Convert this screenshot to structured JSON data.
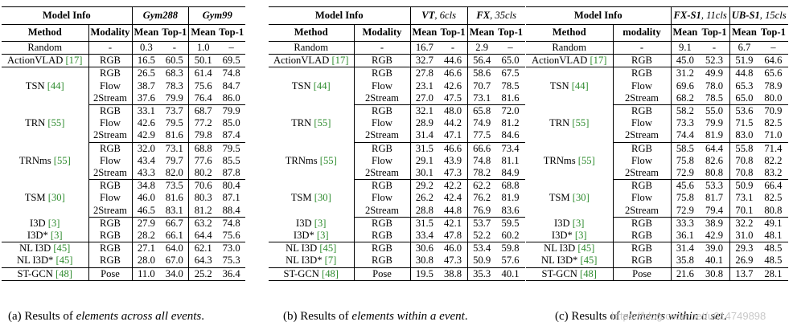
{
  "tables": [
    {
      "header": {
        "info": "Model Info",
        "c1": "Gym288",
        "c1b": "",
        "c2": "Gym99",
        "c2b": ""
      },
      "subheader": {
        "method": "Method",
        "modality": "Modality",
        "m1": "Mean",
        "t1": "Top-1",
        "m2": "Mean",
        "t2": "Top-1"
      },
      "rows": [
        {
          "m": "Random",
          "r": "",
          "mod": "-",
          "v": [
            "0.3",
            "-",
            "1.0",
            "–"
          ]
        },
        {
          "m": "ActionVLAD",
          "r": "[17]",
          "mod": "RGB",
          "v": [
            "16.5",
            "60.5",
            "50.1",
            "69.5"
          ]
        },
        {
          "m": "TSN",
          "r": "[44]",
          "mod": "RGB",
          "v": [
            "26.5",
            "68.3",
            "61.4",
            "74.8"
          ]
        },
        {
          "m": "",
          "r": "",
          "mod": "Flow",
          "v": [
            "38.7",
            "78.3",
            "75.6",
            "84.7"
          ]
        },
        {
          "m": "",
          "r": "",
          "mod": "2Stream",
          "v": [
            "37.6",
            "79.9",
            "76.4",
            "86.0"
          ]
        },
        {
          "m": "TRN",
          "r": "[55]",
          "mod": "RGB",
          "v": [
            "33.1",
            "73.7",
            "68.7",
            "79.9"
          ]
        },
        {
          "m": "",
          "r": "",
          "mod": "Flow",
          "v": [
            "42.6",
            "79.5",
            "77.2",
            "85.0"
          ]
        },
        {
          "m": "",
          "r": "",
          "mod": "2Stream",
          "v": [
            "42.9",
            "81.6",
            "79.8",
            "87.4"
          ]
        },
        {
          "m": "TRNms",
          "r": "[55]",
          "mod": "RGB",
          "v": [
            "32.0",
            "73.1",
            "68.8",
            "79.5"
          ]
        },
        {
          "m": "",
          "r": "",
          "mod": "Flow",
          "v": [
            "43.4",
            "79.7",
            "77.6",
            "85.5"
          ]
        },
        {
          "m": "",
          "r": "",
          "mod": "2Stream",
          "v": [
            "43.3",
            "82.0",
            "80.2",
            "87.8"
          ]
        },
        {
          "m": "TSM",
          "r": "[30]",
          "mod": "RGB",
          "v": [
            "34.8",
            "73.5",
            "70.6",
            "80.4"
          ]
        },
        {
          "m": "",
          "r": "",
          "mod": "Flow",
          "v": [
            "46.0",
            "81.6",
            "80.3",
            "87.1"
          ]
        },
        {
          "m": "",
          "r": "",
          "mod": "2Stream",
          "v": [
            "46.5",
            "83.1",
            "81.2",
            "88.4"
          ]
        },
        {
          "m": "I3D",
          "r": "[3]",
          "mod": "RGB",
          "v": [
            "27.9",
            "66.7",
            "63.2",
            "74.8"
          ]
        },
        {
          "m": "I3D*",
          "r": "[3]",
          "mod": "RGB",
          "v": [
            "28.2",
            "66.1",
            "64.4",
            "75.6"
          ]
        },
        {
          "m": "NL I3D",
          "r": "[45]",
          "mod": "RGB",
          "v": [
            "27.1",
            "64.0",
            "62.1",
            "73.0"
          ]
        },
        {
          "m": "NL I3D*",
          "r": "[45]",
          "mod": "RGB",
          "v": [
            "28.0",
            "67.0",
            "64.3",
            "75.3"
          ]
        },
        {
          "m": "ST-GCN",
          "r": "[48]",
          "mod": "Pose",
          "v": [
            "11.0",
            "34.0",
            "25.2",
            "36.4"
          ]
        }
      ],
      "caption_a": "(a) Results of ",
      "caption_b": "elements across all events",
      "caption_c": "."
    },
    {
      "header": {
        "info": "Model Info",
        "c1": "VT",
        "c1b": ", 6cls",
        "c2": "FX",
        "c2b": ", 35cls"
      },
      "subheader": {
        "method": "Method",
        "modality": "Modality",
        "m1": "Mean",
        "t1": "Top-1",
        "m2": "Mean",
        "t2": "Top-1"
      },
      "rows": [
        {
          "m": "Random",
          "r": "",
          "mod": "-",
          "v": [
            "16.7",
            "-",
            "2.9",
            "–"
          ]
        },
        {
          "m": "ActionVLAD",
          "r": "[17]",
          "mod": "RGB",
          "v": [
            "32.7",
            "44.6",
            "56.4",
            "65.0"
          ]
        },
        {
          "m": "TSN",
          "r": "[44]",
          "mod": "RGB",
          "v": [
            "27.8",
            "46.6",
            "58.6",
            "67.5"
          ]
        },
        {
          "m": "",
          "r": "",
          "mod": "Flow",
          "v": [
            "23.1",
            "42.6",
            "70.7",
            "78.5"
          ]
        },
        {
          "m": "",
          "r": "",
          "mod": "2Stream",
          "v": [
            "27.0",
            "47.5",
            "73.1",
            "81.6"
          ]
        },
        {
          "m": "TRN",
          "r": "[55]",
          "mod": "RGB",
          "v": [
            "32.1",
            "48.0",
            "65.8",
            "72.0"
          ]
        },
        {
          "m": "",
          "r": "",
          "mod": "Flow",
          "v": [
            "28.9",
            "44.2",
            "74.9",
            "81.2"
          ]
        },
        {
          "m": "",
          "r": "",
          "mod": "2Stream",
          "v": [
            "31.4",
            "47.1",
            "77.5",
            "84.6"
          ]
        },
        {
          "m": "TRNms",
          "r": "[55]",
          "mod": "RGB",
          "v": [
            "31.5",
            "46.6",
            "66.6",
            "73.4"
          ]
        },
        {
          "m": "",
          "r": "",
          "mod": "Flow",
          "v": [
            "29.1",
            "43.9",
            "74.8",
            "81.1"
          ]
        },
        {
          "m": "",
          "r": "",
          "mod": "2Stream",
          "v": [
            "30.1",
            "47.3",
            "78.2",
            "84.9"
          ]
        },
        {
          "m": "TSM",
          "r": "[30]",
          "mod": "RGB",
          "v": [
            "29.2",
            "42.2",
            "62.2",
            "68.8"
          ]
        },
        {
          "m": "",
          "r": "",
          "mod": "Flow",
          "v": [
            "26.2",
            "42.4",
            "76.2",
            "81.9"
          ]
        },
        {
          "m": "",
          "r": "",
          "mod": "2Stream",
          "v": [
            "28.8",
            "44.8",
            "76.9",
            "83.6"
          ]
        },
        {
          "m": "I3D",
          "r": "[3]",
          "mod": "RGB",
          "v": [
            "31.5",
            "42.1",
            "53.7",
            "59.5"
          ]
        },
        {
          "m": "I3D*",
          "r": "[3]",
          "mod": "RGB",
          "v": [
            "33.4",
            "47.8",
            "52.2",
            "60.2"
          ]
        },
        {
          "m": "NL I3D",
          "r": "[45]",
          "mod": "RGB",
          "v": [
            "30.6",
            "46.0",
            "53.4",
            "59.8"
          ]
        },
        {
          "m": "NL I3D*",
          "r": "[7]",
          "mod": "RGB",
          "v": [
            "30.8",
            "47.3",
            "50.9",
            "57.6"
          ]
        },
        {
          "m": "ST-GCN",
          "r": "[48]",
          "mod": "Pose",
          "v": [
            "19.5",
            "38.8",
            "35.3",
            "40.1"
          ]
        }
      ],
      "caption_a": "(b) Results of ",
      "caption_b": "elements within a event",
      "caption_c": "."
    },
    {
      "header": {
        "info": "Model Info",
        "c1": "FX-S1",
        "c1b": ", 11cls",
        "c2": "UB-S1",
        "c2b": ", 15cls"
      },
      "subheader": {
        "method": "Method",
        "modality": "modality",
        "m1": "Mean",
        "t1": "Top-1",
        "m2": "Mean",
        "t2": "Top-1"
      },
      "rows": [
        {
          "m": "Random",
          "r": "",
          "mod": "-",
          "v": [
            "9.1",
            "-",
            "6.7",
            "–"
          ]
        },
        {
          "m": "ActionVLAD",
          "r": "[17]",
          "mod": "RGB",
          "v": [
            "45.0",
            "52.3",
            "51.9",
            "64.6"
          ]
        },
        {
          "m": "TSN",
          "r": "[44]",
          "mod": "RGB",
          "v": [
            "31.2",
            "49.9",
            "44.8",
            "65.6"
          ]
        },
        {
          "m": "",
          "r": "",
          "mod": "Flow",
          "v": [
            "69.6",
            "78.0",
            "65.3",
            "78.9"
          ]
        },
        {
          "m": "",
          "r": "",
          "mod": "2Stream",
          "v": [
            "68.2",
            "78.5",
            "65.0",
            "80.0"
          ]
        },
        {
          "m": "TRN",
          "r": "[55]",
          "mod": "RGB",
          "v": [
            "58.2",
            "55.0",
            "53.6",
            "70.9"
          ]
        },
        {
          "m": "",
          "r": "",
          "mod": "Flow",
          "v": [
            "73.3",
            "79.9",
            "71.5",
            "82.5"
          ]
        },
        {
          "m": "",
          "r": "",
          "mod": "2Stream",
          "v": [
            "74.4",
            "81.9",
            "83.0",
            "71.0"
          ]
        },
        {
          "m": "TRNms",
          "r": "[55]",
          "mod": "RGB",
          "v": [
            "58.5",
            "64.4",
            "55.8",
            "71.4"
          ]
        },
        {
          "m": "",
          "r": "",
          "mod": "Flow",
          "v": [
            "75.8",
            "82.6",
            "70.8",
            "82.2"
          ]
        },
        {
          "m": "",
          "r": "",
          "mod": "2Stream",
          "v": [
            "72.9",
            "80.8",
            "70.8",
            "83.2"
          ]
        },
        {
          "m": "TSM",
          "r": "[30]",
          "mod": "RGB",
          "v": [
            "45.6",
            "53.3",
            "50.9",
            "66.4"
          ]
        },
        {
          "m": "",
          "r": "",
          "mod": "Flow",
          "v": [
            "75.8",
            "81.7",
            "73.1",
            "82.5"
          ]
        },
        {
          "m": "",
          "r": "",
          "mod": "2Stream",
          "v": [
            "72.9",
            "79.4",
            "70.1",
            "80.8"
          ]
        },
        {
          "m": "I3D",
          "r": "[3]",
          "mod": "RGB",
          "v": [
            "33.3",
            "38.9",
            "32.2",
            "49.1"
          ]
        },
        {
          "m": "I3D*",
          "r": "[3]",
          "mod": "RGB",
          "v": [
            "36.1",
            "42.9",
            "31.0",
            "48.1"
          ]
        },
        {
          "m": "NL I3D",
          "r": "[45]",
          "mod": "RGB",
          "v": [
            "31.4",
            "39.0",
            "29.3",
            "48.5"
          ]
        },
        {
          "m": "NL I3D*",
          "r": "[45]",
          "mod": "RGB",
          "v": [
            "35.8",
            "40.1",
            "26.9",
            "48.5"
          ]
        },
        {
          "m": "ST-GCN",
          "r": "[48]",
          "mod": "Pose",
          "v": [
            "21.6",
            "30.8",
            "13.7",
            "28.1"
          ]
        }
      ],
      "caption_a": "(c) Results of ",
      "caption_b": "elements within a set",
      "caption_c": "."
    }
  ],
  "watermark": "https://blog.csdn.net/u014749898"
}
